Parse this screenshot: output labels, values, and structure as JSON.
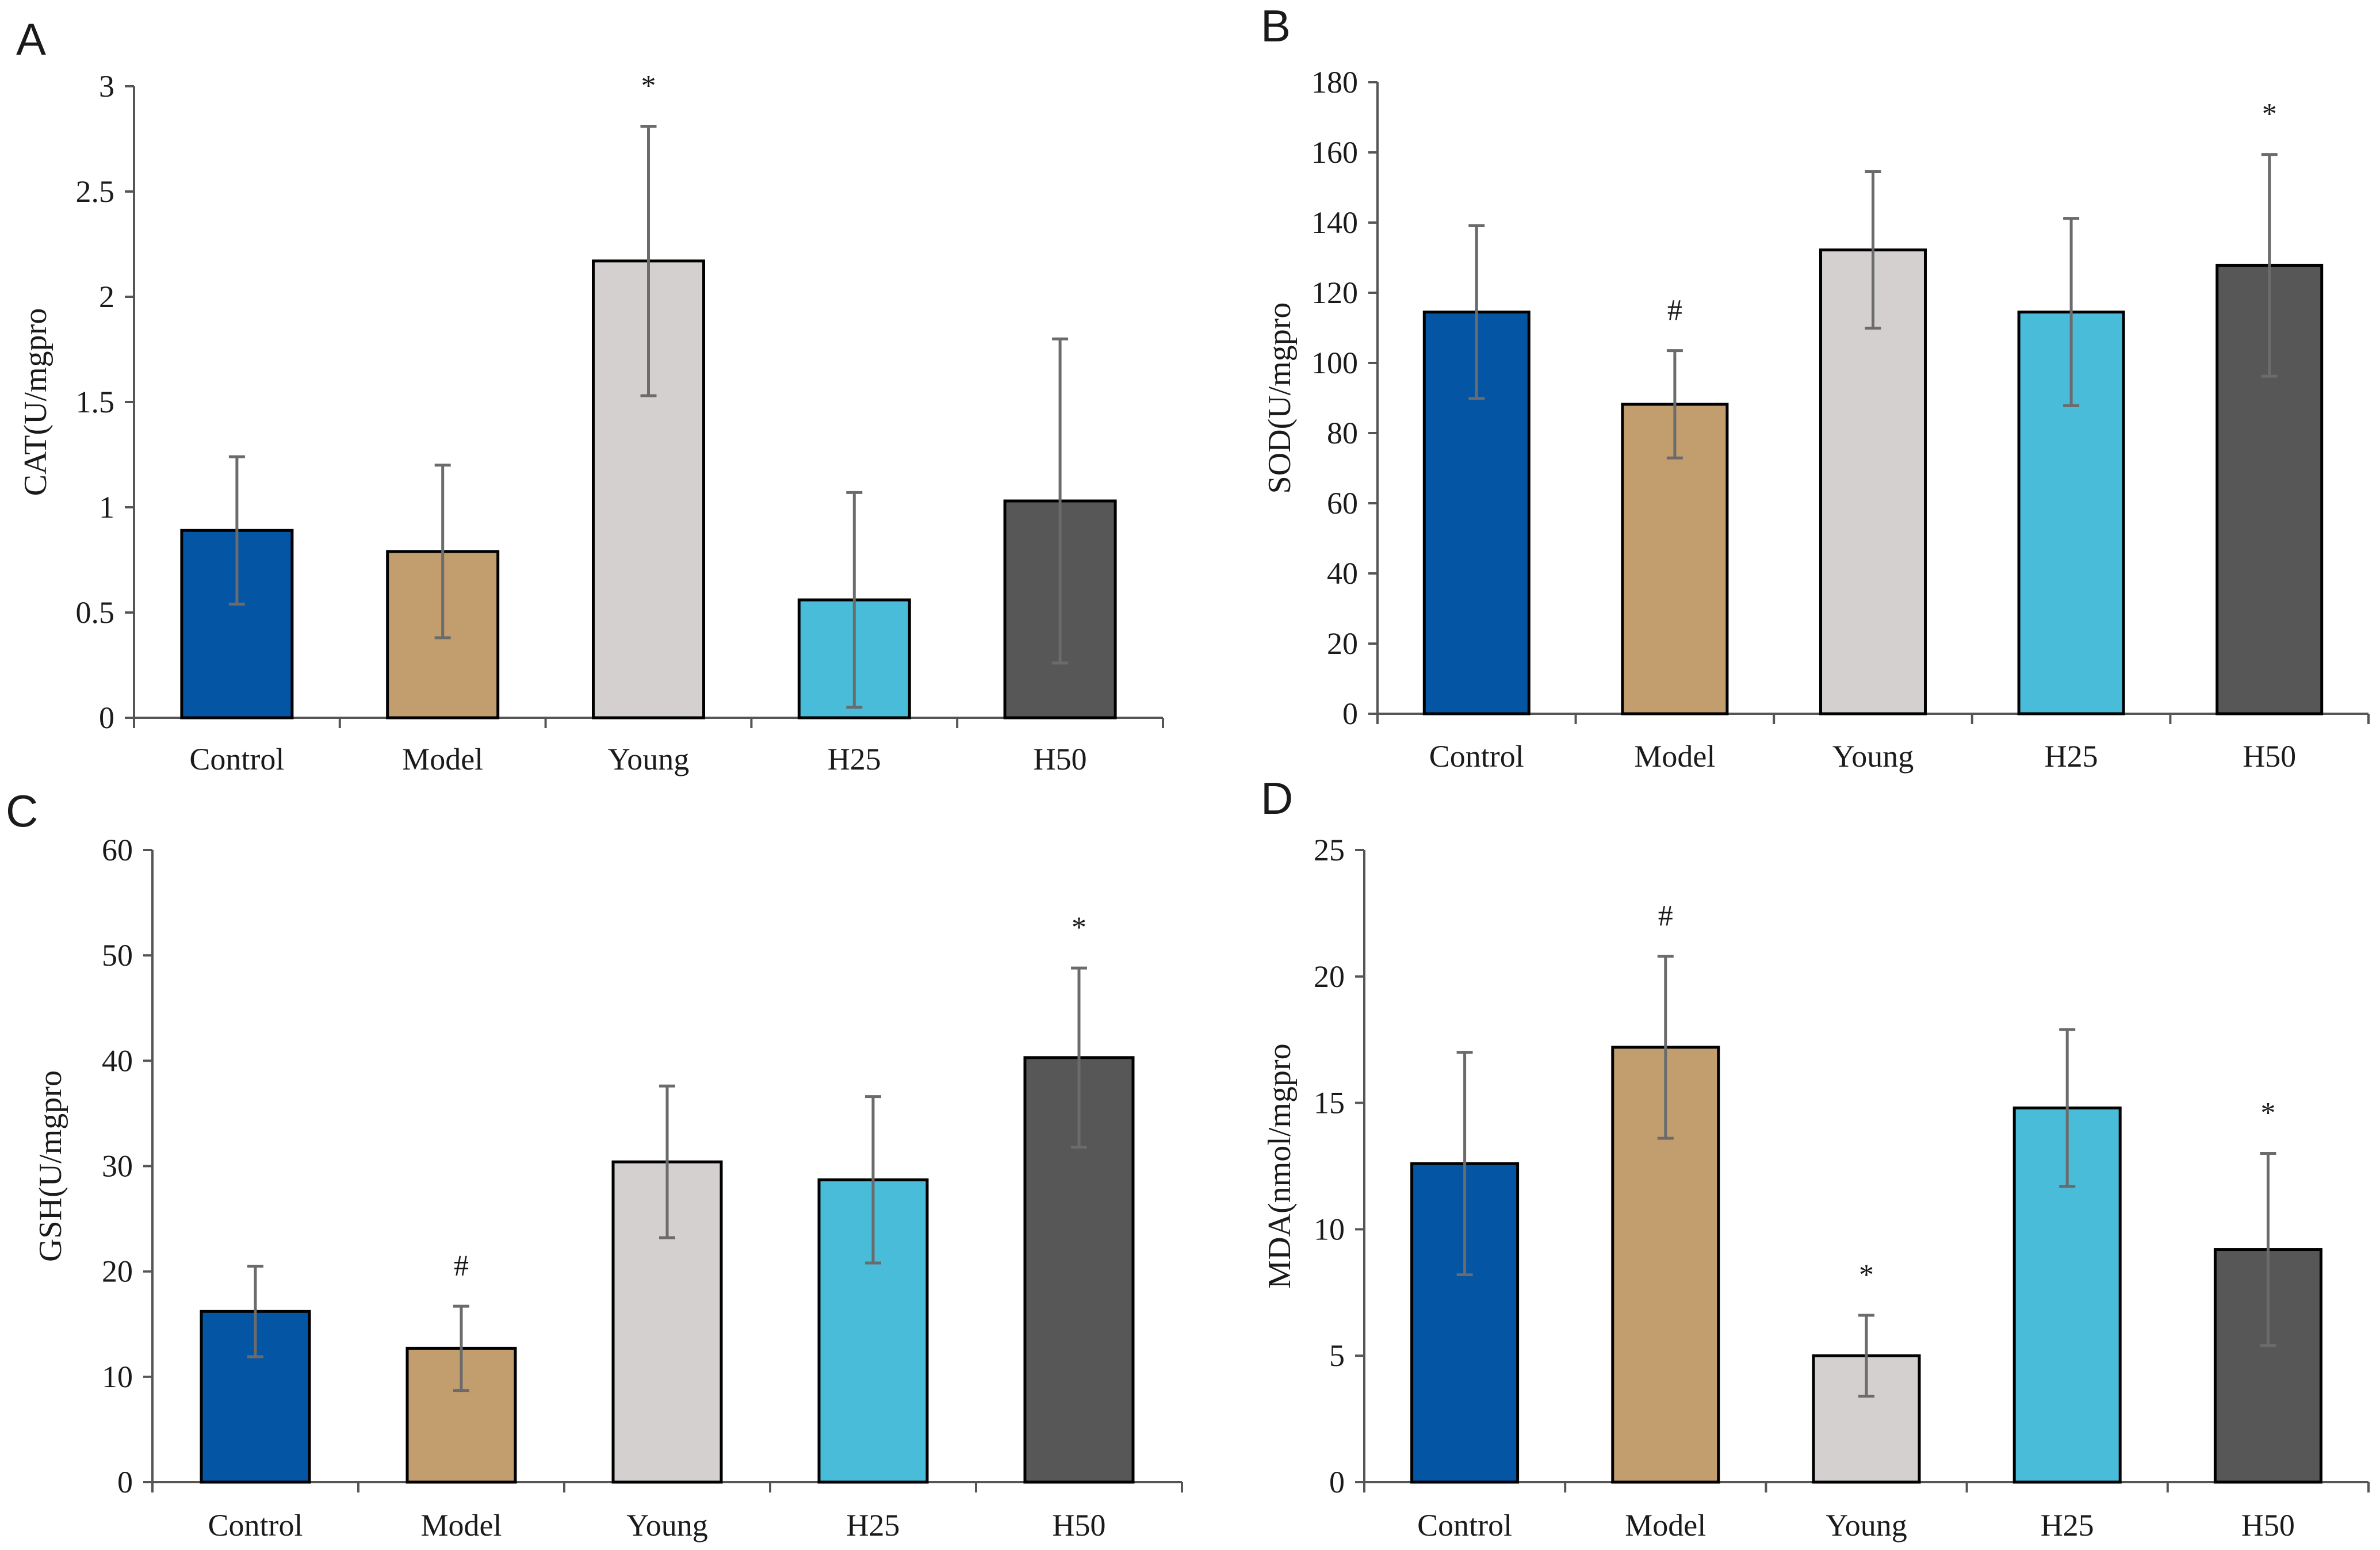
{
  "colors": {
    "Control": "#0455a4",
    "Model": "#c29d6e",
    "Young": "#d4d0d0",
    "H25": "#48bcd8",
    "H50": "#575757"
  },
  "chart_data": [
    {
      "type": "bar",
      "panel": "A",
      "ylabel": "CAT(U/mgpro",
      "categories": [
        "Control",
        "Model",
        "Young",
        "H25",
        "H50"
      ],
      "values": [
        0.89,
        0.79,
        2.17,
        0.56,
        1.03
      ],
      "errors": [
        0.35,
        0.41,
        0.64,
        0.51,
        0.77
      ],
      "significance": [
        "",
        "",
        "*",
        "",
        ""
      ],
      "ylim": [
        0,
        3
      ],
      "yticks": [
        0,
        0.5,
        1,
        1.5,
        2,
        2.5,
        3
      ],
      "ytick_labels": [
        "0",
        "0.5",
        "1",
        "1.5",
        "2",
        "2.5",
        "3"
      ]
    },
    {
      "type": "bar",
      "panel": "B",
      "ylabel": "SOD(U/mgpro",
      "categories": [
        "Control",
        "Model",
        "Young",
        "H25",
        "H50"
      ],
      "values": [
        114.5,
        88.2,
        132.2,
        114.5,
        127.8
      ],
      "errors": [
        24.6,
        15.3,
        22.3,
        26.7,
        31.6
      ],
      "significance": [
        "",
        "#",
        "",
        "",
        "*"
      ],
      "ylim": [
        0,
        180
      ],
      "yticks": [
        0,
        20,
        40,
        60,
        80,
        100,
        120,
        140,
        160,
        180
      ],
      "ytick_labels": [
        "0",
        "20",
        "40",
        "60",
        "80",
        "100",
        "120",
        "140",
        "160",
        "180"
      ]
    },
    {
      "type": "bar",
      "panel": "C",
      "ylabel": "GSH(U/mgpro",
      "categories": [
        "Control",
        "Model",
        "Young",
        "H25",
        "H50"
      ],
      "values": [
        16.2,
        12.7,
        30.4,
        28.7,
        40.3
      ],
      "errors": [
        4.3,
        4.0,
        7.2,
        7.9,
        8.5
      ],
      "significance": [
        "",
        "#",
        "",
        "",
        "*"
      ],
      "ylim": [
        0,
        60
      ],
      "yticks": [
        0,
        10,
        20,
        30,
        40,
        50,
        60
      ],
      "ytick_labels": [
        "0",
        "10",
        "20",
        "30",
        "40",
        "50",
        "60"
      ]
    },
    {
      "type": "bar",
      "panel": "D",
      "ylabel": "MDA(nmol/mgpro",
      "categories": [
        "Control",
        "Model",
        "Young",
        "H25",
        "H50"
      ],
      "values": [
        12.6,
        17.2,
        5.0,
        14.8,
        9.2
      ],
      "errors": [
        4.4,
        3.6,
        1.6,
        3.1,
        3.8
      ],
      "significance": [
        "",
        "#",
        "*",
        "",
        "*"
      ],
      "ylim": [
        0,
        25
      ],
      "yticks": [
        0,
        5,
        10,
        15,
        20,
        25
      ],
      "ytick_labels": [
        "0",
        "5",
        "10",
        "15",
        "20",
        "25"
      ]
    }
  ]
}
